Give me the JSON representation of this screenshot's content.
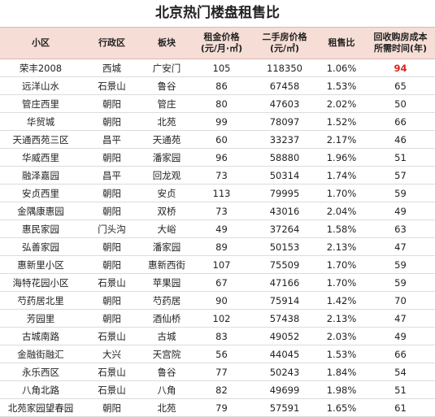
{
  "title": "北京热门楼盘租售比",
  "table": {
    "header": [
      "小区",
      "行政区",
      "板块",
      "租金价格\n(元/月·㎡)",
      "二手房价格\n(元/㎡)",
      "租售比",
      "回收购房成本\n所需时间(年)"
    ],
    "rows": [
      [
        "荣丰2008",
        "西城",
        "广安门",
        "105",
        "118350",
        "1.06%",
        "94"
      ],
      [
        "远洋山水",
        "石景山",
        "鲁谷",
        "86",
        "67458",
        "1.53%",
        "65"
      ],
      [
        "管庄西里",
        "朝阳",
        "管庄",
        "80",
        "47603",
        "2.02%",
        "50"
      ],
      [
        "华贸城",
        "朝阳",
        "北苑",
        "99",
        "78097",
        "1.52%",
        "66"
      ],
      [
        "天通西苑三区",
        "昌平",
        "天通苑",
        "60",
        "33237",
        "2.17%",
        "46"
      ],
      [
        "华威西里",
        "朝阳",
        "潘家园",
        "96",
        "58880",
        "1.96%",
        "51"
      ],
      [
        "融泽嘉园",
        "昌平",
        "回龙观",
        "73",
        "50314",
        "1.74%",
        "57"
      ],
      [
        "安贞西里",
        "朝阳",
        "安贞",
        "113",
        "79995",
        "1.70%",
        "59"
      ],
      [
        "金隅康惠园",
        "朝阳",
        "双桥",
        "73",
        "43016",
        "2.04%",
        "49"
      ],
      [
        "惠民家园",
        "门头沟",
        "大峪",
        "49",
        "37264",
        "1.58%",
        "63"
      ],
      [
        "弘善家园",
        "朝阳",
        "潘家园",
        "89",
        "50153",
        "2.13%",
        "47"
      ],
      [
        "惠新里小区",
        "朝阳",
        "惠新西街",
        "107",
        "75509",
        "1.70%",
        "59"
      ],
      [
        "海特花园小区",
        "石景山",
        "苹果园",
        "67",
        "47166",
        "1.70%",
        "59"
      ],
      [
        "芍药居北里",
        "朝阳",
        "芍药居",
        "90",
        "75914",
        "1.42%",
        "70"
      ],
      [
        "芳园里",
        "朝阳",
        "酒仙桥",
        "102",
        "57438",
        "2.13%",
        "47"
      ],
      [
        "古城南路",
        "石景山",
        "古城",
        "83",
        "49052",
        "2.03%",
        "49"
      ],
      [
        "金融街融汇",
        "大兴",
        "天宫院",
        "56",
        "44045",
        "1.53%",
        "66"
      ],
      [
        "永乐西区",
        "石景山",
        "鲁谷",
        "77",
        "50243",
        "1.84%",
        "54"
      ],
      [
        "八角北路",
        "石景山",
        "八角",
        "82",
        "49699",
        "1.98%",
        "51"
      ],
      [
        "北苑家园望春园",
        "朝阳",
        "北苑",
        "79",
        "57591",
        "1.65%",
        "61"
      ]
    ]
  }
}
